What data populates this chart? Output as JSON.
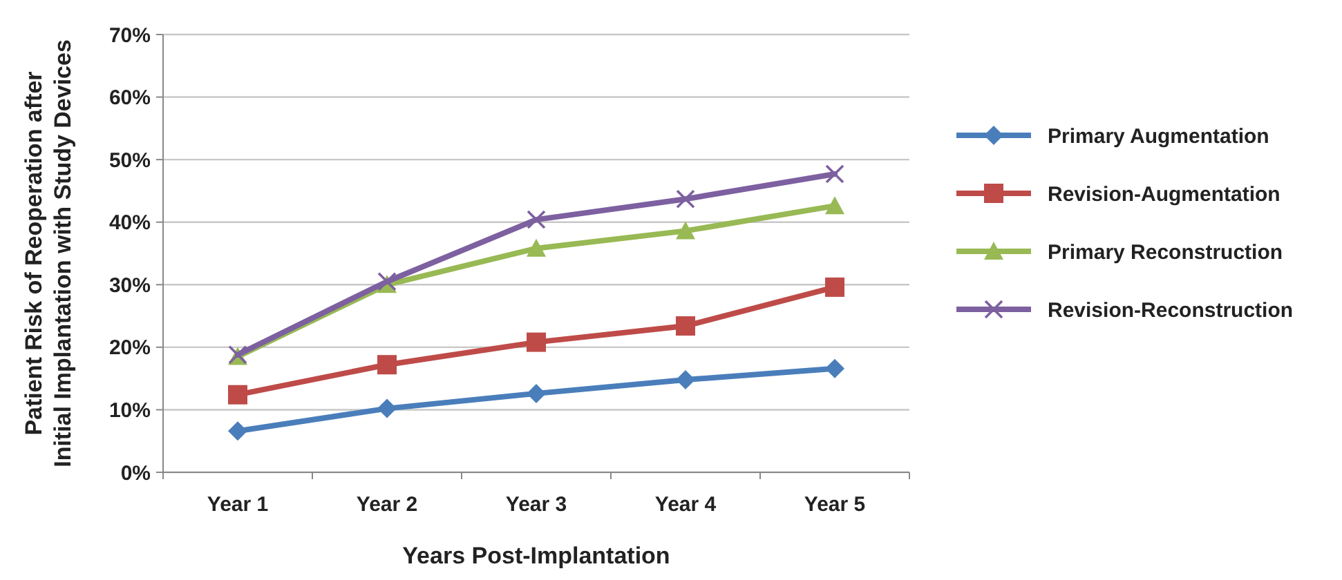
{
  "chart_data": {
    "type": "line",
    "xlabel": "Years Post-Implantation",
    "ylabel": "Patient Risk of Reoperation after\nInitial Implantation with Study Devices",
    "categories": [
      "Year 1",
      "Year 2",
      "Year 3",
      "Year 4",
      "Year 5"
    ],
    "series": [
      {
        "name": "Primary Augmentation",
        "color": "#4a7ebb",
        "marker": "diamond",
        "values": [
          6.6,
          10.2,
          12.6,
          14.8,
          16.6
        ]
      },
      {
        "name": "Revision-Augmentation",
        "color": "#be4b48",
        "marker": "square",
        "values": [
          12.4,
          17.2,
          20.8,
          23.4,
          29.6
        ]
      },
      {
        "name": "Primary Reconstruction",
        "color": "#98b954",
        "marker": "triangle",
        "values": [
          18.5,
          30,
          35.8,
          38.6,
          42.6
        ]
      },
      {
        "name": "Revision-Reconstruction",
        "color": "#7d60a0",
        "marker": "cross",
        "values": [
          18.8,
          30.5,
          40.4,
          43.7,
          47.7
        ]
      }
    ],
    "ylim": [
      0,
      70
    ],
    "yticks": [
      {
        "value": 0,
        "label": "0%"
      },
      {
        "value": 10,
        "label": "10%"
      },
      {
        "value": 20,
        "label": "20%"
      },
      {
        "value": 30,
        "label": "30%"
      },
      {
        "value": 40,
        "label": "40%"
      },
      {
        "value": 50,
        "label": "50%"
      },
      {
        "value": 60,
        "label": "60%"
      },
      {
        "value": 70,
        "label": "70%"
      }
    ],
    "grid": "y",
    "legend": "right",
    "line_style": "solid"
  }
}
